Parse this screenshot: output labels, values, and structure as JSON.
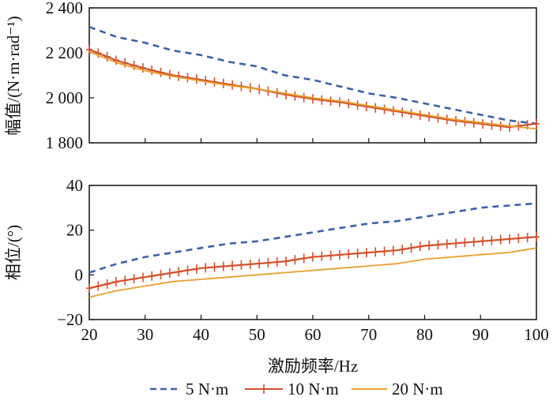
{
  "chart_data": [
    {
      "type": "line",
      "panel": "top",
      "ylabel": "幅值/(N·m·rad⁻¹)",
      "xlabel": "",
      "xlim": [
        20,
        100
      ],
      "ylim": [
        1800,
        2400
      ],
      "yticks": [
        1800,
        2000,
        2200,
        2400
      ],
      "ytick_labels": [
        "1 800",
        "2 000",
        "2 200",
        "2 400"
      ],
      "xticks": [
        20,
        30,
        40,
        50,
        60,
        70,
        80,
        90,
        100
      ],
      "x": [
        20,
        25,
        30,
        35,
        40,
        45,
        50,
        55,
        60,
        65,
        70,
        75,
        80,
        85,
        90,
        95,
        100
      ],
      "series": [
        {
          "name": "5 N·m",
          "values": [
            2315,
            2270,
            2245,
            2210,
            2190,
            2160,
            2140,
            2100,
            2080,
            2050,
            2020,
            2000,
            1975,
            1950,
            1925,
            1900,
            1885
          ]
        },
        {
          "name": "10 N·m",
          "values": [
            2215,
            2165,
            2130,
            2100,
            2080,
            2060,
            2040,
            2015,
            1995,
            1980,
            1960,
            1940,
            1920,
            1900,
            1885,
            1870,
            1885
          ]
        },
        {
          "name": "20 N·m",
          "values": [
            2205,
            2155,
            2120,
            2095,
            2075,
            2055,
            2040,
            2020,
            2000,
            1985,
            1965,
            1945,
            1925,
            1905,
            1890,
            1875,
            1862
          ]
        }
      ]
    },
    {
      "type": "line",
      "panel": "bottom",
      "ylabel": "相位/(°)",
      "xlabel": "激励频率/Hz",
      "xlim": [
        20,
        100
      ],
      "ylim": [
        -20,
        40
      ],
      "yticks": [
        -20,
        0,
        20,
        40
      ],
      "ytick_labels": [
        "−20",
        "0",
        "20",
        "40"
      ],
      "xticks": [
        20,
        30,
        40,
        50,
        60,
        70,
        80,
        90,
        100
      ],
      "xtick_labels": [
        "20",
        "30",
        "40",
        "50",
        "60",
        "70",
        "80",
        "90",
        "100"
      ],
      "x": [
        20,
        25,
        30,
        35,
        40,
        45,
        50,
        55,
        60,
        65,
        70,
        75,
        80,
        85,
        90,
        95,
        100
      ],
      "series": [
        {
          "name": "5 N·m",
          "values": [
            1,
            5,
            8,
            10,
            12,
            14,
            15,
            17,
            19,
            21,
            23,
            24,
            26,
            28,
            30,
            31,
            32
          ]
        },
        {
          "name": "10 N·m",
          "values": [
            -6,
            -3,
            -1,
            1,
            3,
            4,
            5,
            6,
            8,
            9,
            10,
            11,
            13,
            14,
            15,
            16,
            17
          ]
        },
        {
          "name": "20 N·m",
          "values": [
            -10,
            -7,
            -5,
            -3,
            -2,
            -1,
            0,
            1,
            2,
            3,
            4,
            5,
            7,
            8,
            9,
            10,
            12
          ]
        }
      ]
    }
  ],
  "legend": {
    "placement": "bottom",
    "items": [
      {
        "label": "5 N·m",
        "color": "#3a62a8",
        "style": "dashed"
      },
      {
        "label": "10 N·m",
        "color": "#d4502a",
        "style": "plus-marker"
      },
      {
        "label": "20 N·m",
        "color": "#e8a030",
        "style": "solid"
      }
    ]
  }
}
